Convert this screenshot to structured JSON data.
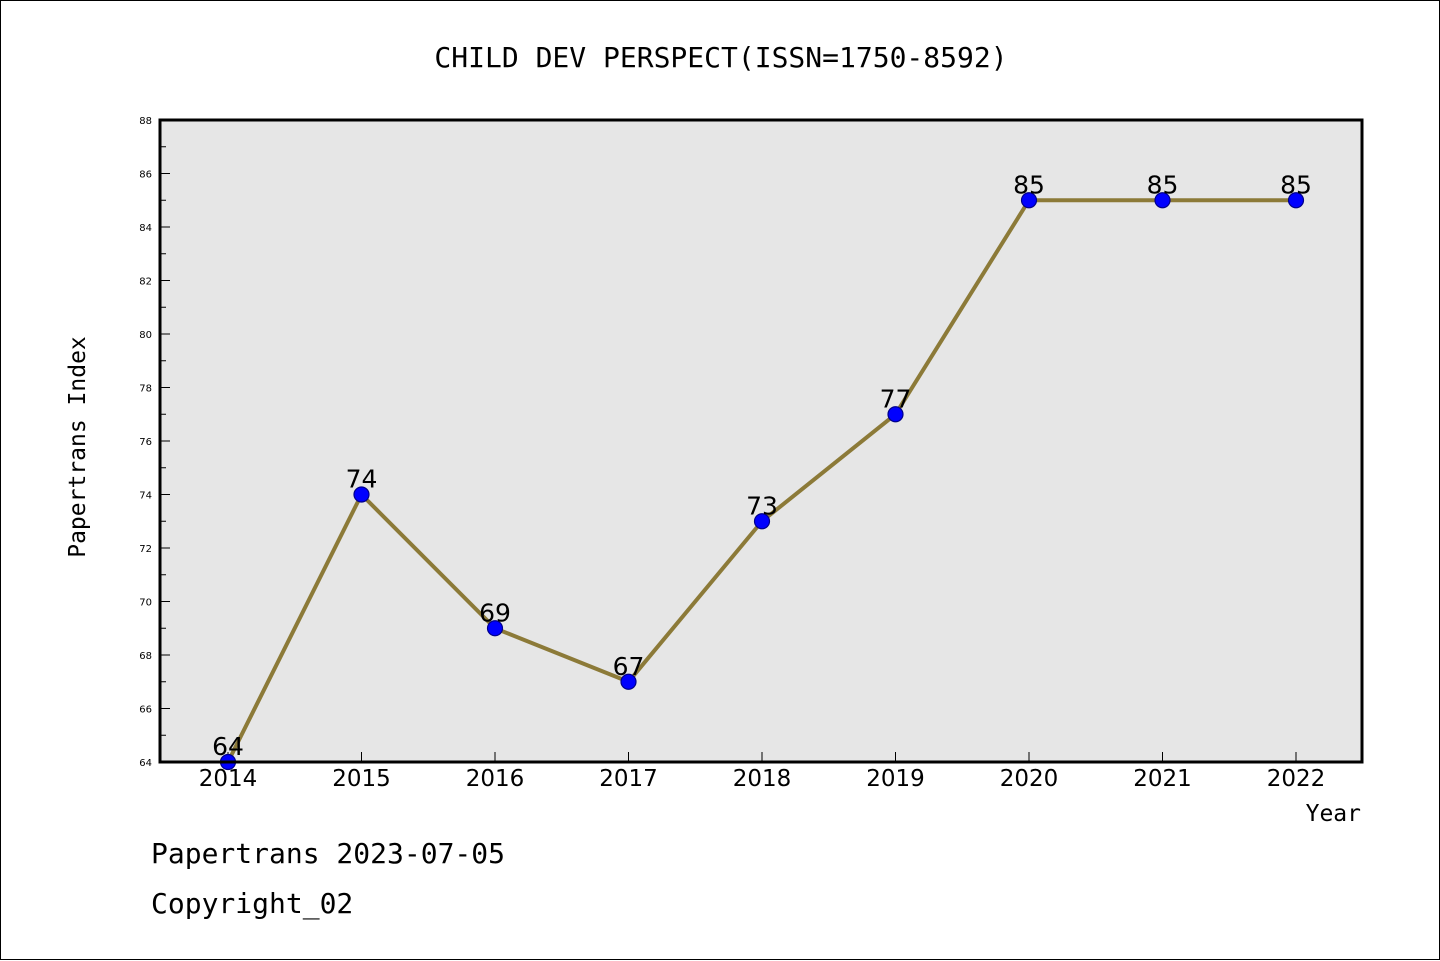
{
  "colors": {
    "plot_background": "#e6e6e6",
    "line": "#8c7a38",
    "marker_fill": "#0000ff",
    "marker_edge": "#00008b",
    "axis": "#000000"
  },
  "chart_data": {
    "type": "line",
    "title": "CHILD DEV PERSPECT(ISSN=1750-8592)",
    "xlabel": "Year",
    "ylabel": "Papertrans Index",
    "categories": [
      "2014",
      "2015",
      "2016",
      "2017",
      "2018",
      "2019",
      "2020",
      "2021",
      "2022"
    ],
    "series": [
      {
        "values": [
          64,
          74,
          69,
          67,
          73,
          77,
          85,
          85,
          85
        ]
      }
    ],
    "ylim": [
      64,
      88
    ],
    "yticks": [
      64,
      66,
      68,
      70,
      72,
      74,
      76,
      78,
      80,
      82,
      84,
      86,
      88
    ],
    "data_labels": [
      "64",
      "74",
      "69",
      "67",
      "73",
      "77",
      "85",
      "85",
      "85"
    ],
    "grid": false,
    "legend": "none"
  },
  "footer": {
    "line1": "Papertrans 2023-07-05",
    "line2": "Copyright_02"
  }
}
